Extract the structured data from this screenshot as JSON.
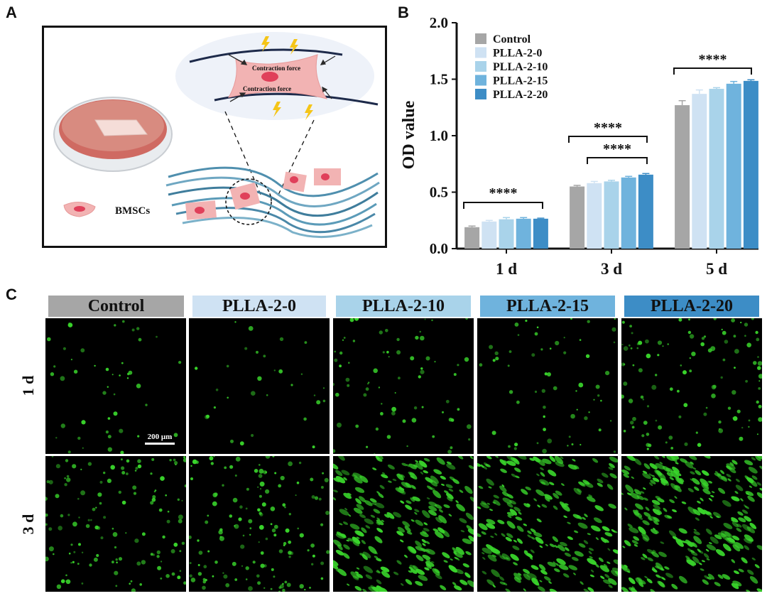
{
  "panels": {
    "a": {
      "letter": "A",
      "contraction_top": "Contraction force",
      "contraction_bottom": "Contraction force",
      "cell_legend": "BMSCs"
    },
    "b": {
      "letter": "B",
      "ylabel": "OD value",
      "significance": [
        "****",
        "****",
        "****",
        "****"
      ]
    },
    "c": {
      "letter": "C",
      "column_headers": [
        "Control",
        "PLLA-2-0",
        "PLLA-2-10",
        "PLLA-2-15",
        "PLLA-2-20"
      ],
      "row_labels": [
        "1 d",
        "3 d"
      ],
      "scale_bar": "200 μm"
    }
  },
  "colors": {
    "Control": "#a6a6a6",
    "PLLA-2-0": "#cfe2f3",
    "PLLA-2-10": "#a9d3ea",
    "PLLA-2-15": "#6fb3dd",
    "PLLA-2-20": "#3d8dc6",
    "fluorescence": "#39d42b",
    "cell_pink": "#f2b3b3",
    "nucleus": "#e0405a"
  },
  "chart_data": {
    "type": "bar",
    "categories": [
      "1 d",
      "3 d",
      "5 d"
    ],
    "series": [
      {
        "name": "Control",
        "values": [
          0.19,
          0.55,
          1.27
        ],
        "errors": [
          0.01,
          0.01,
          0.04
        ]
      },
      {
        "name": "PLLA-2-0",
        "values": [
          0.24,
          0.58,
          1.37
        ],
        "errors": [
          0.01,
          0.015,
          0.035
        ]
      },
      {
        "name": "PLLA-2-10",
        "values": [
          0.26,
          0.595,
          1.415
        ],
        "errors": [
          0.015,
          0.01,
          0.01
        ]
      },
      {
        "name": "PLLA-2-15",
        "values": [
          0.265,
          0.63,
          1.46
        ],
        "errors": [
          0.01,
          0.01,
          0.02
        ]
      },
      {
        "name": "PLLA-2-20",
        "values": [
          0.265,
          0.655,
          1.485
        ],
        "errors": [
          0.005,
          0.01,
          0.01
        ]
      }
    ],
    "ylabel": "OD value",
    "ylim": [
      0.0,
      2.0
    ],
    "yticks": [
      "0.0",
      "0.5",
      "1.0",
      "1.5",
      "2.0"
    ],
    "legend": "top-left",
    "grid": false,
    "annotations": [
      "****",
      "****",
      "****",
      "****"
    ]
  }
}
